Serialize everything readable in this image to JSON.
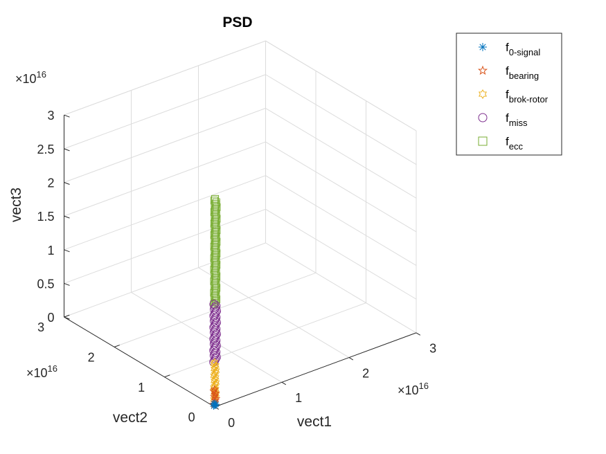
{
  "chart_data": {
    "type": "scatter3d",
    "title": "PSD",
    "xlabel": "vect1",
    "ylabel": "vect2",
    "zlabel": "vect3",
    "exponent_label": "×10",
    "exponent": "16",
    "xlim": [
      0,
      3
    ],
    "ylim": [
      0,
      3
    ],
    "zlim": [
      0,
      3
    ],
    "xticks": [
      "0",
      "1",
      "2",
      "3"
    ],
    "yticks": [
      "0",
      "1",
      "2",
      "3"
    ],
    "zticks": [
      "0",
      "0.5",
      "1",
      "1.5",
      "2",
      "2.5",
      "3"
    ],
    "grid": true,
    "legend_position": "top-right",
    "series": [
      {
        "name": "f",
        "sub": "0-signal",
        "marker": "asterisk",
        "color": "#0072BD",
        "range": [
          0.0,
          0.05
        ]
      },
      {
        "name": "f",
        "sub": "bearing",
        "marker": "pentagram",
        "color": "#D95319",
        "range": [
          0.03,
          0.25
        ]
      },
      {
        "name": "f",
        "sub": "brok-rotor",
        "marker": "hexagram",
        "color": "#EDB120",
        "range": [
          0.1,
          0.65
        ]
      },
      {
        "name": "f",
        "sub": "miss",
        "marker": "circle",
        "color": "#7E2F8E",
        "range": [
          0.65,
          1.5
        ]
      },
      {
        "name": "f",
        "sub": "ecc",
        "marker": "square",
        "color": "#77AC30",
        "range": [
          1.5,
          3.05
        ]
      }
    ]
  }
}
